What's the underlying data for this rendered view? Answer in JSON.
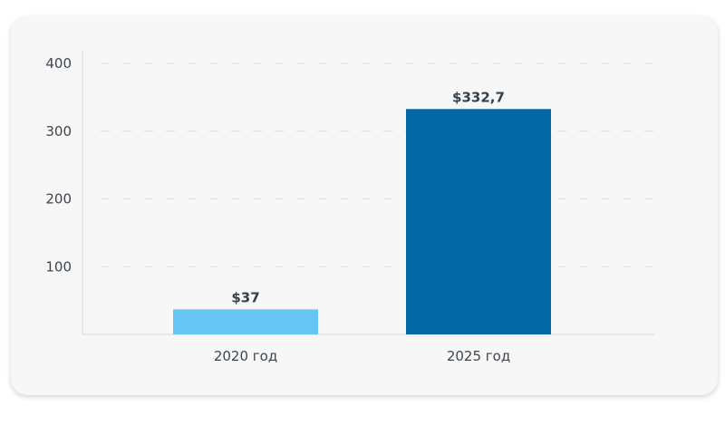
{
  "chart_data": {
    "type": "bar",
    "title": "",
    "xlabel": "",
    "ylabel": "",
    "categories": [
      "2020 год",
      "2025 год"
    ],
    "values": [
      37,
      332.7
    ],
    "data_labels": [
      "$37",
      "$332,7"
    ],
    "bar_colors": [
      "#66c5f3",
      "#0468a5"
    ],
    "ylim": [
      0,
      400
    ],
    "yticks": [
      100,
      200,
      300,
      400
    ],
    "grid": true,
    "grid_style": "dashed",
    "legend": "none"
  }
}
